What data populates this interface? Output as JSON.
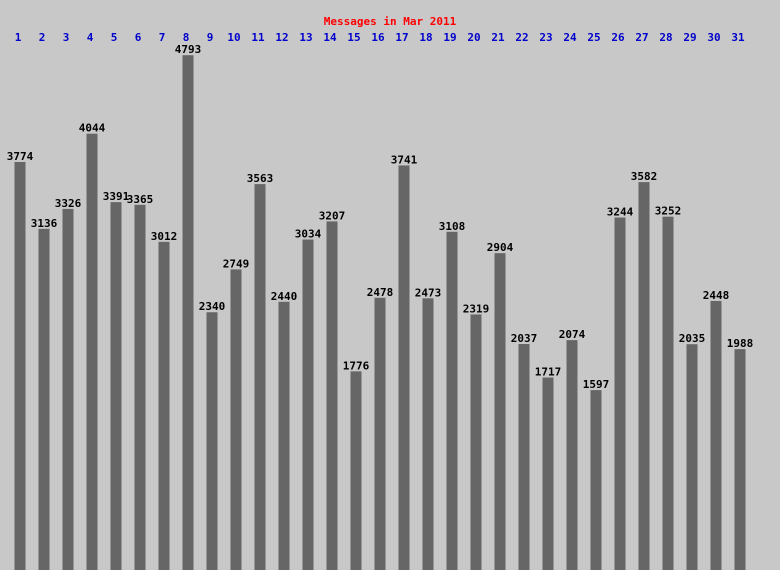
{
  "chart_data": {
    "type": "bar",
    "title": "Messages in Mar 2011",
    "categories": [
      "1",
      "2",
      "3",
      "4",
      "5",
      "6",
      "7",
      "8",
      "9",
      "10",
      "11",
      "12",
      "13",
      "14",
      "15",
      "16",
      "17",
      "18",
      "19",
      "20",
      "21",
      "22",
      "23",
      "24",
      "25",
      "26",
      "27",
      "28",
      "29",
      "30",
      "31"
    ],
    "values": [
      3774,
      3136,
      3326,
      4044,
      3391,
      3365,
      3012,
      4793,
      2340,
      2749,
      3563,
      2440,
      3034,
      3207,
      1776,
      2478,
      3741,
      2473,
      3108,
      2319,
      2904,
      2037,
      1717,
      2074,
      1597,
      3244,
      3582,
      3252,
      2035,
      2448,
      1988
    ],
    "color": "#666666",
    "ylim": [
      -120,
      5320
    ]
  }
}
